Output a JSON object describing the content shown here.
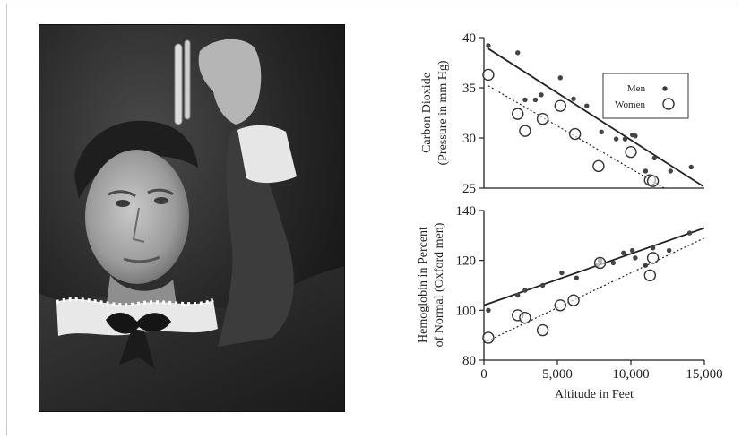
{
  "photo": {
    "description_icon": "woman-with-test-tube-photo-icon"
  },
  "chart_data": [
    {
      "type": "scatter",
      "title": "",
      "xlabel": "",
      "ylabel_lines": [
        "Carbon Dioxide",
        "(Pressure in mm Hg)"
      ],
      "xlim": [
        0,
        15000
      ],
      "ylim": [
        25,
        40
      ],
      "yticks": [
        "25",
        "30",
        "35",
        "40"
      ],
      "legend": {
        "placement": "top-right",
        "entries": [
          "Men",
          "Women"
        ]
      },
      "series": [
        {
          "name": "Men",
          "marker": "filled-dot",
          "points": [
            [
              300,
              39.2
            ],
            [
              2300,
              38.5
            ],
            [
              2800,
              33.8
            ],
            [
              3500,
              33.8
            ],
            [
              3900,
              34.3
            ],
            [
              5200,
              36.0
            ],
            [
              6100,
              33.9
            ],
            [
              7000,
              33.2
            ],
            [
              8000,
              30.6
            ],
            [
              9000,
              29.9
            ],
            [
              9600,
              29.9
            ],
            [
              10100,
              30.3
            ],
            [
              10300,
              30.2
            ],
            [
              11000,
              26.7
            ],
            [
              11600,
              28.0
            ],
            [
              12700,
              26.7
            ],
            [
              14100,
              27.1
            ]
          ],
          "trend": [
            [
              300,
              38.9
            ],
            [
              14900,
              25.2
            ]
          ]
        },
        {
          "name": "Women",
          "marker": "open-circle",
          "points": [
            [
              300,
              36.3
            ],
            [
              2300,
              32.4
            ],
            [
              2800,
              30.7
            ],
            [
              4000,
              31.9
            ],
            [
              5200,
              33.2
            ],
            [
              6200,
              30.4
            ],
            [
              7800,
              27.2
            ],
            [
              10000,
              28.6
            ],
            [
              11300,
              25.8
            ],
            [
              11500,
              25.7
            ]
          ],
          "trend": [
            [
              300,
              35.2
            ],
            [
              12400,
              24.9
            ]
          ]
        }
      ]
    },
    {
      "type": "scatter",
      "title": "",
      "xlabel": "Altitude in Feet",
      "ylabel_lines": [
        "Hemoglobin in Percent",
        "of Normal (Oxford men)"
      ],
      "xlim": [
        0,
        15000
      ],
      "ylim": [
        80,
        140
      ],
      "xticks": [
        "0",
        "5,000",
        "10,000",
        "15,000"
      ],
      "yticks": [
        "80",
        "100",
        "120",
        "140"
      ],
      "series": [
        {
          "name": "Men",
          "marker": "filled-dot",
          "points": [
            [
              300,
              100
            ],
            [
              2300,
              106
            ],
            [
              2800,
              108
            ],
            [
              4000,
              110
            ],
            [
              5300,
              115
            ],
            [
              6300,
              113
            ],
            [
              7700,
              118
            ],
            [
              7900,
              120
            ],
            [
              8800,
              119
            ],
            [
              9500,
              123
            ],
            [
              10100,
              124
            ],
            [
              10300,
              121
            ],
            [
              11000,
              118
            ],
            [
              11500,
              125
            ],
            [
              12600,
              124
            ],
            [
              14000,
              131
            ]
          ],
          "trend": [
            [
              0,
              102
            ],
            [
              15000,
              133
            ]
          ]
        },
        {
          "name": "Women",
          "marker": "open-circle",
          "points": [
            [
              300,
              89
            ],
            [
              2300,
              98
            ],
            [
              2800,
              97
            ],
            [
              4000,
              92
            ],
            [
              5200,
              102
            ],
            [
              6100,
              104
            ],
            [
              7900,
              119
            ],
            [
              11300,
              114
            ],
            [
              11500,
              121
            ]
          ],
          "trend": [
            [
              0,
              87
            ],
            [
              15000,
              129
            ]
          ]
        }
      ]
    }
  ]
}
